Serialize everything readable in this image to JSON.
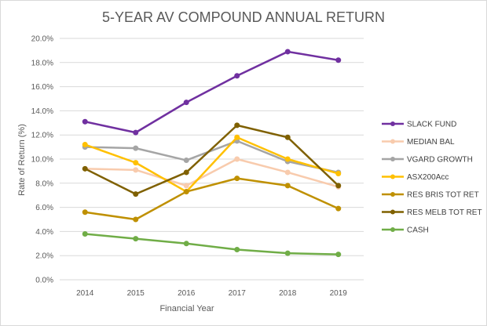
{
  "chart_data": {
    "type": "line",
    "title": "5-YEAR AV COMPOUND ANNUAL RETURN",
    "xlabel": "Financial Year",
    "ylabel": "Rate of Return (%)",
    "categories": [
      "2014",
      "2015",
      "2016",
      "2017",
      "2018",
      "2019"
    ],
    "ylim": [
      0,
      20
    ],
    "yticks": [
      "0.0%",
      "2.0%",
      "4.0%",
      "6.0%",
      "8.0%",
      "10.0%",
      "12.0%",
      "14.0%",
      "16.0%",
      "18.0%",
      "20.0%"
    ],
    "grid": true,
    "legend_position": "right",
    "series": [
      {
        "name": "SLACK FUND",
        "color": "#7030a0",
        "values": [
          13.1,
          12.2,
          14.7,
          16.9,
          18.9,
          18.2
        ]
      },
      {
        "name": "MEDIAN BAL",
        "color": "#f8cbad",
        "values": [
          9.2,
          9.1,
          7.8,
          10.0,
          8.9,
          7.7
        ]
      },
      {
        "name": "VGARD GROWTH",
        "color": "#a5a5a5",
        "values": [
          11.0,
          10.9,
          9.9,
          11.5,
          9.8,
          8.9
        ]
      },
      {
        "name": "ASX200Acc",
        "color": "#ffc000",
        "values": [
          11.2,
          9.7,
          7.3,
          11.8,
          10.0,
          8.8
        ]
      },
      {
        "name": "RES BRIS TOT RET",
        "color": "#bf9000",
        "values": [
          5.6,
          5.0,
          7.3,
          8.4,
          7.8,
          5.9
        ]
      },
      {
        "name": "RES MELB TOT RET",
        "color": "#7f6000",
        "values": [
          9.2,
          7.1,
          8.9,
          12.8,
          11.8,
          7.8
        ]
      },
      {
        "name": "CASH",
        "color": "#70ad47",
        "values": [
          3.8,
          3.4,
          3.0,
          2.5,
          2.2,
          2.1
        ]
      }
    ]
  },
  "colors": {
    "grid": "#d9d9d9",
    "text": "#595959"
  }
}
